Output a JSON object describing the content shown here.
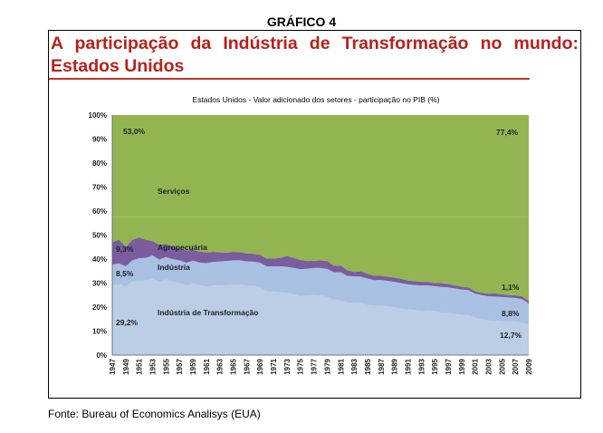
{
  "figure_label": "GRÁFICO 4",
  "headline": "A participação da Indústria de Transformação no mundo: Estados Unidos",
  "source": "Fonte: Bureau of Economics Analisys (EUA)",
  "colors": {
    "headline": "#b5221b",
    "servicos": "#92b552",
    "agropecuaria": "#7b5c9e",
    "industria": "#a8c1e3",
    "industria_transformacao": "#bccde6"
  },
  "chart_data": {
    "type": "area",
    "stacked": true,
    "title": "Estados Unidos - Valor adicionado dos setores - participação no PIB (%)",
    "xlabel": "",
    "ylabel": "",
    "ylim": [
      0,
      100
    ],
    "yticks": [
      "0%",
      "10%",
      "20%",
      "30%",
      "40%",
      "50%",
      "60%",
      "70%",
      "80%",
      "90%",
      "100%"
    ],
    "x": [
      "1947",
      "1948",
      "1949",
      "1950",
      "1951",
      "1952",
      "1953",
      "1954",
      "1955",
      "1956",
      "1957",
      "1958",
      "1959",
      "1960",
      "1961",
      "1962",
      "1963",
      "1964",
      "1965",
      "1966",
      "1967",
      "1968",
      "1969",
      "1970",
      "1971",
      "1972",
      "1973",
      "1974",
      "1975",
      "1976",
      "1977",
      "1978",
      "1979",
      "1980",
      "1981",
      "1982",
      "1983",
      "1984",
      "1985",
      "1986",
      "1987",
      "1988",
      "1989",
      "1990",
      "1991",
      "1992",
      "1993",
      "1994",
      "1995",
      "1996",
      "1997",
      "1998",
      "1999",
      "2000",
      "2001",
      "2002",
      "2003",
      "2004",
      "2005",
      "2006",
      "2007",
      "2008",
      "2009"
    ],
    "xtick_labels": [
      "1947",
      "1949",
      "1951",
      "1953",
      "1955",
      "1957",
      "1959",
      "1961",
      "1963",
      "1965",
      "1967",
      "1969",
      "1971",
      "1973",
      "1975",
      "1977",
      "1979",
      "1981",
      "1983",
      "1985",
      "1987",
      "1989",
      "1991",
      "1993",
      "1995",
      "1997",
      "1999",
      "2001",
      "2003",
      "2005",
      "2007",
      "2009"
    ],
    "series": [
      {
        "name": "Indústria de Transformação",
        "values": [
          29.2,
          29.5,
          28.5,
          30.5,
          31.2,
          31.0,
          32.0,
          30.5,
          31.5,
          30.5,
          30.0,
          29.0,
          29.8,
          29.0,
          28.5,
          29.0,
          29.0,
          29.0,
          29.2,
          29.3,
          28.8,
          28.8,
          28.3,
          26.5,
          26.3,
          26.2,
          26.0,
          25.3,
          24.5,
          24.8,
          25.0,
          24.8,
          24.2,
          23.0,
          22.8,
          21.8,
          21.8,
          21.8,
          20.8,
          20.5,
          20.5,
          20.3,
          19.8,
          19.3,
          19.0,
          18.8,
          18.5,
          18.6,
          18.4,
          17.8,
          17.6,
          17.2,
          16.8,
          16.8,
          15.5,
          14.8,
          14.5,
          14.3,
          14.0,
          14.0,
          13.8,
          13.5,
          12.7
        ]
      },
      {
        "name": "Indústria",
        "values": [
          8.5,
          8.7,
          8.5,
          9.0,
          9.2,
          9.5,
          9.5,
          9.3,
          9.3,
          9.5,
          9.5,
          9.5,
          9.5,
          9.6,
          9.8,
          9.8,
          10.0,
          10.2,
          10.3,
          10.2,
          10.2,
          10.1,
          10.2,
          10.5,
          10.7,
          10.8,
          10.8,
          11.0,
          11.3,
          11.2,
          11.3,
          11.5,
          11.7,
          11.5,
          11.7,
          11.2,
          11.0,
          10.9,
          11.1,
          10.7,
          10.8,
          10.6,
          10.7,
          10.7,
          10.5,
          10.4,
          10.5,
          10.4,
          10.3,
          10.6,
          10.6,
          10.6,
          10.5,
          10.3,
          10.1,
          10.2,
          10.0,
          10.1,
          10.2,
          10.0,
          10.0,
          9.8,
          8.8
        ]
      },
      {
        "name": "Agropecuária",
        "values": [
          9.3,
          10.0,
          8.0,
          8.5,
          8.6,
          7.5,
          6.0,
          6.2,
          5.5,
          5.2,
          5.0,
          5.2,
          4.5,
          4.5,
          4.5,
          4.2,
          3.8,
          3.5,
          3.5,
          3.4,
          3.4,
          3.3,
          3.3,
          3.2,
          3.2,
          3.5,
          4.5,
          4.2,
          3.8,
          3.2,
          3.0,
          3.2,
          3.3,
          2.7,
          2.8,
          2.4,
          1.8,
          2.2,
          2.0,
          1.8,
          1.7,
          1.8,
          1.8,
          1.8,
          1.6,
          1.6,
          1.5,
          1.5,
          1.3,
          1.6,
          1.4,
          1.3,
          1.2,
          1.1,
          1.0,
          0.9,
          1.1,
          1.3,
          1.2,
          1.0,
          1.1,
          1.2,
          1.1
        ]
      },
      {
        "name": "Serviços",
        "values": [
          53.0,
          51.8,
          55.0,
          52.0,
          51.0,
          52.0,
          52.5,
          54.0,
          53.7,
          54.8,
          55.5,
          56.3,
          56.2,
          56.9,
          57.2,
          57.0,
          57.2,
          57.3,
          57.0,
          57.1,
          57.6,
          57.8,
          58.2,
          59.8,
          59.8,
          59.5,
          58.7,
          59.5,
          60.4,
          60.8,
          60.7,
          60.5,
          60.8,
          62.8,
          62.7,
          64.6,
          65.4,
          65.1,
          66.1,
          67.0,
          67.0,
          67.3,
          67.7,
          68.2,
          68.9,
          69.2,
          69.5,
          69.5,
          70.0,
          70.0,
          70.4,
          70.9,
          71.5,
          71.8,
          73.4,
          74.1,
          74.4,
          74.3,
          74.6,
          75.0,
          75.1,
          75.5,
          77.4
        ]
      }
    ],
    "annotations": {
      "servicos_1947": "53,0%",
      "servicos_2009": "77,4%",
      "agro_1947": "9,3%",
      "agro_2009": "1,1%",
      "industria_1947": "8,5%",
      "industria_2009": "8,8%",
      "transformacao_1947": "29,2%",
      "transformacao_2009": "12,7%",
      "label_servicos": "Serviços",
      "label_agro": "Agropecuária",
      "label_industria": "Indústria",
      "label_transformacao": "Indústria de Transformação"
    },
    "grid": false,
    "legend": "none"
  }
}
